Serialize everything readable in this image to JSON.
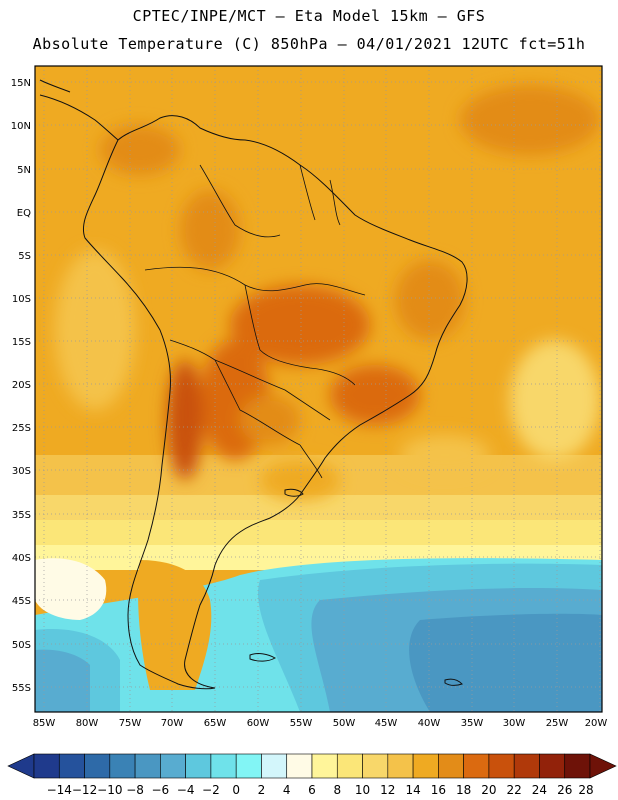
{
  "header": {
    "line1": "CPTEC/INPE/MCT –  Eta Model 15km – GFS",
    "line2": "Absolute Temperature (C) 850hPa – 04/01/2021 12UTC fct=51h"
  },
  "map": {
    "lat_labels": [
      "15N",
      "10N",
      "5N",
      "EQ",
      "5S",
      "10S",
      "15S",
      "20S",
      "25S",
      "30S",
      "35S",
      "40S",
      "45S",
      "50S",
      "55S"
    ],
    "lon_labels": [
      "85W",
      "80W",
      "75W",
      "70W",
      "65W",
      "60W",
      "55W",
      "50W",
      "45W",
      "40W",
      "35W",
      "30W",
      "25W",
      "20W"
    ]
  },
  "colorbar": {
    "labels": [
      "-14",
      "-12",
      "-10",
      "-8",
      "-6",
      "-4",
      "-2",
      "0",
      "2",
      "4",
      "6",
      "8",
      "10",
      "12",
      "14",
      "16",
      "18",
      "20",
      "22",
      "24",
      "26",
      "28"
    ],
    "colors": [
      "#1f3a8c",
      "#25529c",
      "#2e6aa8",
      "#3a82b5",
      "#4a97c2",
      "#58acd0",
      "#5ec8de",
      "#6fe2ea",
      "#82f5f5",
      "#d3f6fb",
      "#fffbe6",
      "#fff59a",
      "#fbe678",
      "#f8d76a",
      "#f4c24a",
      "#efaa22",
      "#e38c18",
      "#db6a10",
      "#c9510c",
      "#b0390a",
      "#92220a",
      "#6e1208"
    ]
  }
}
